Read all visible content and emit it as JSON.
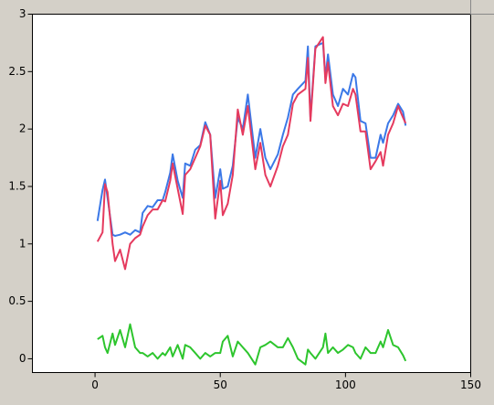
{
  "chart_data": {
    "type": "line",
    "x": [
      1,
      3,
      4,
      5,
      7,
      8,
      10,
      12,
      14,
      16,
      18,
      19,
      21,
      23,
      25,
      27,
      28,
      30,
      31,
      33,
      35,
      36,
      38,
      40,
      42,
      44,
      46,
      48,
      50,
      51,
      53,
      55,
      57,
      59,
      61,
      64,
      66,
      68,
      70,
      73,
      75,
      77,
      79,
      81,
      84,
      85,
      86,
      88,
      91,
      92,
      93,
      95,
      97,
      99,
      101,
      103,
      104,
      106,
      108,
      110,
      112,
      114,
      115,
      117,
      119,
      121,
      123,
      124
    ],
    "series": [
      {
        "color": "#3b78e7",
        "values": [
          1.2,
          1.47,
          1.56,
          1.4,
          1.08,
          1.07,
          1.08,
          1.1,
          1.08,
          1.12,
          1.1,
          1.27,
          1.33,
          1.32,
          1.38,
          1.38,
          1.45,
          1.62,
          1.78,
          1.55,
          1.4,
          1.7,
          1.68,
          1.82,
          1.86,
          2.06,
          1.95,
          1.4,
          1.65,
          1.48,
          1.5,
          1.68,
          2.1,
          2.0,
          2.3,
          1.75,
          2.0,
          1.75,
          1.65,
          1.78,
          1.95,
          2.1,
          2.3,
          2.35,
          2.42,
          2.72,
          2.1,
          2.72,
          2.75,
          2.45,
          2.65,
          2.3,
          2.2,
          2.35,
          2.3,
          2.48,
          2.45,
          2.07,
          2.05,
          1.75,
          1.75,
          1.95,
          1.88,
          2.05,
          2.12,
          2.22,
          2.15,
          2.03
        ]
      },
      {
        "color": "#e53a5e",
        "values": [
          1.02,
          1.1,
          1.52,
          1.45,
          1.0,
          0.85,
          0.95,
          0.78,
          1.0,
          1.05,
          1.08,
          1.15,
          1.25,
          1.3,
          1.3,
          1.38,
          1.37,
          1.55,
          1.7,
          1.48,
          1.26,
          1.6,
          1.65,
          1.75,
          1.85,
          2.03,
          1.95,
          1.22,
          1.55,
          1.25,
          1.35,
          1.6,
          2.17,
          1.95,
          2.2,
          1.65,
          1.88,
          1.6,
          1.5,
          1.68,
          1.85,
          1.95,
          2.22,
          2.3,
          2.35,
          2.62,
          2.07,
          2.7,
          2.8,
          2.4,
          2.58,
          2.2,
          2.12,
          2.22,
          2.2,
          2.35,
          2.3,
          1.98,
          1.98,
          1.65,
          1.72,
          1.8,
          1.68,
          1.95,
          2.05,
          2.2,
          2.1,
          2.05
        ]
      },
      {
        "color": "#2dc52d",
        "values": [
          0.17,
          0.2,
          0.1,
          0.05,
          0.22,
          0.12,
          0.25,
          0.1,
          0.3,
          0.1,
          0.05,
          0.05,
          0.02,
          0.05,
          0,
          0.05,
          0.03,
          0.1,
          0.02,
          0.12,
          0,
          0.12,
          0.1,
          0.05,
          0,
          0.05,
          0.02,
          0.05,
          0.05,
          0.15,
          0.2,
          0.02,
          0.15,
          0.1,
          0.05,
          -0.05,
          0.1,
          0.12,
          0.15,
          0.1,
          0.1,
          0.18,
          0.1,
          0,
          -0.05,
          0.08,
          0.05,
          0,
          0.1,
          0.22,
          0.05,
          0.1,
          0.05,
          0.08,
          0.12,
          0.1,
          0.05,
          0,
          0.1,
          0.05,
          0.05,
          0.15,
          0.1,
          0.25,
          0.12,
          0.1,
          0.03,
          -0.02
        ]
      }
    ],
    "xlim": [
      -25,
      150
    ],
    "xticks": [
      0,
      50,
      100,
      150
    ],
    "ylim": [
      -0.12,
      3
    ],
    "yticks": [
      0,
      0.5,
      1,
      1.5,
      2,
      2.5,
      3
    ]
  }
}
